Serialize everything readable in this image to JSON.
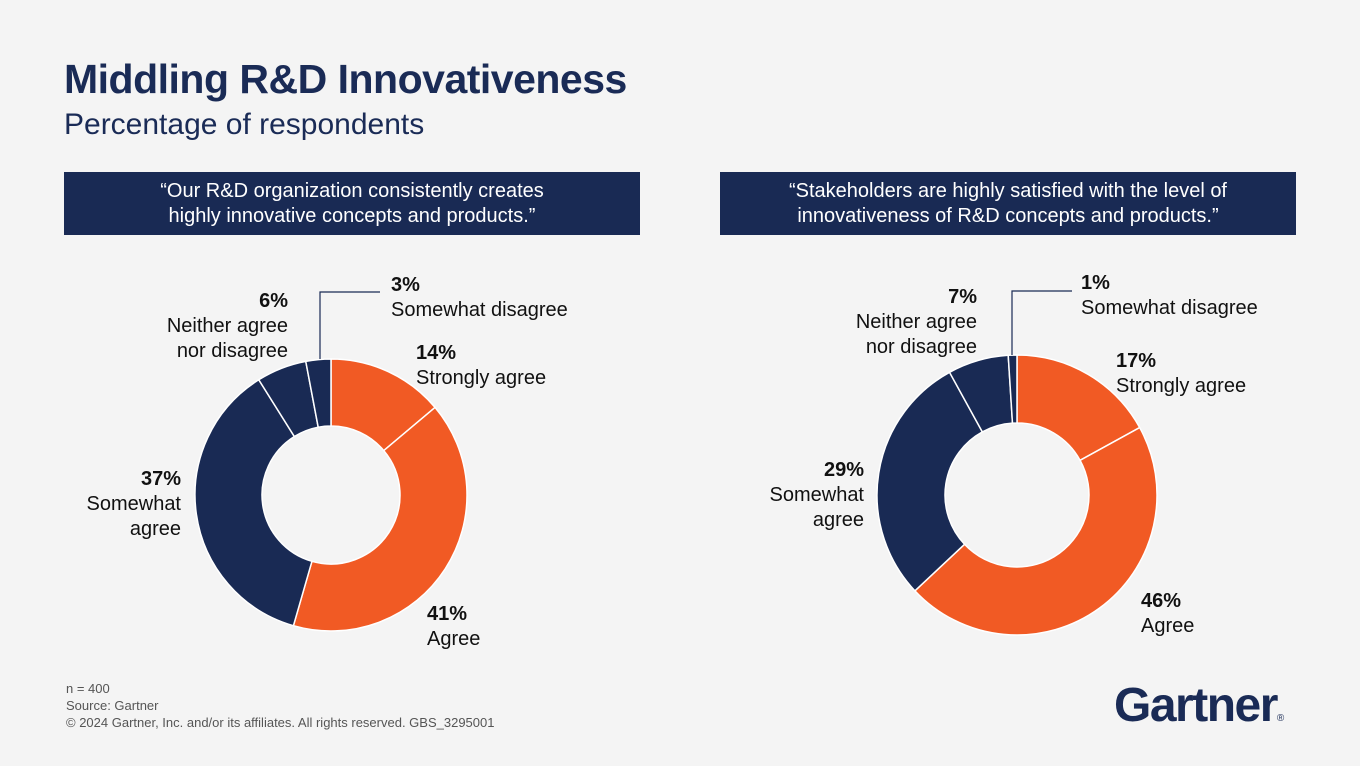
{
  "header": {
    "title": "Middling R&D Innovativeness",
    "subtitle": "Percentage of respondents"
  },
  "colors": {
    "navy": "#192a54",
    "orange": "#f15a24",
    "background": "#f4f4f4"
  },
  "chart_data": [
    {
      "type": "pie",
      "title": "“Our R&D organization consistently creates highly innovative concepts and products.”",
      "title_lines": [
        "“Our R&D organization consistently creates",
        "highly innovative concepts and products.”"
      ],
      "slices": [
        {
          "label_lines": [
            "Strongly agree"
          ],
          "pct_label": "14%",
          "value": 14,
          "color": "#f15a24"
        },
        {
          "label_lines": [
            "Agree"
          ],
          "pct_label": "41%",
          "value": 41,
          "color": "#f15a24"
        },
        {
          "label_lines": [
            "Somewhat",
            "agree"
          ],
          "pct_label": "37%",
          "value": 37,
          "color": "#192a54"
        },
        {
          "label_lines": [
            "Neither agree",
            "nor disagree"
          ],
          "pct_label": "6%",
          "value": 6,
          "color": "#192a54"
        },
        {
          "label_lines": [
            "Somewhat disagree"
          ],
          "pct_label": "3%",
          "value": 3,
          "color": "#192a54"
        }
      ]
    },
    {
      "type": "pie",
      "title": "“Stakeholders are highly satisfied with the level of innovativeness of R&D concepts and products.”",
      "title_lines": [
        "“Stakeholders are highly satisfied with the level of",
        "innovativeness of R&D concepts and products.”"
      ],
      "slices": [
        {
          "label_lines": [
            "Strongly agree"
          ],
          "pct_label": "17%",
          "value": 17,
          "color": "#f15a24"
        },
        {
          "label_lines": [
            "Agree"
          ],
          "pct_label": "46%",
          "value": 46,
          "color": "#f15a24"
        },
        {
          "label_lines": [
            "Somewhat",
            "agree"
          ],
          "pct_label": "29%",
          "value": 29,
          "color": "#192a54"
        },
        {
          "label_lines": [
            "Neither agree",
            "nor disagree"
          ],
          "pct_label": "7%",
          "value": 7,
          "color": "#192a54"
        },
        {
          "label_lines": [
            "Somewhat disagree"
          ],
          "pct_label": "1%",
          "value": 1,
          "color": "#192a54"
        }
      ]
    }
  ],
  "footer": {
    "sample": "n = 400",
    "source": "Source: Gartner",
    "copyright": "© 2024 Gartner, Inc. and/or its affiliates. All rights reserved. GBS_3295001"
  },
  "logo": {
    "text": "Gartner",
    "mark": "®"
  }
}
